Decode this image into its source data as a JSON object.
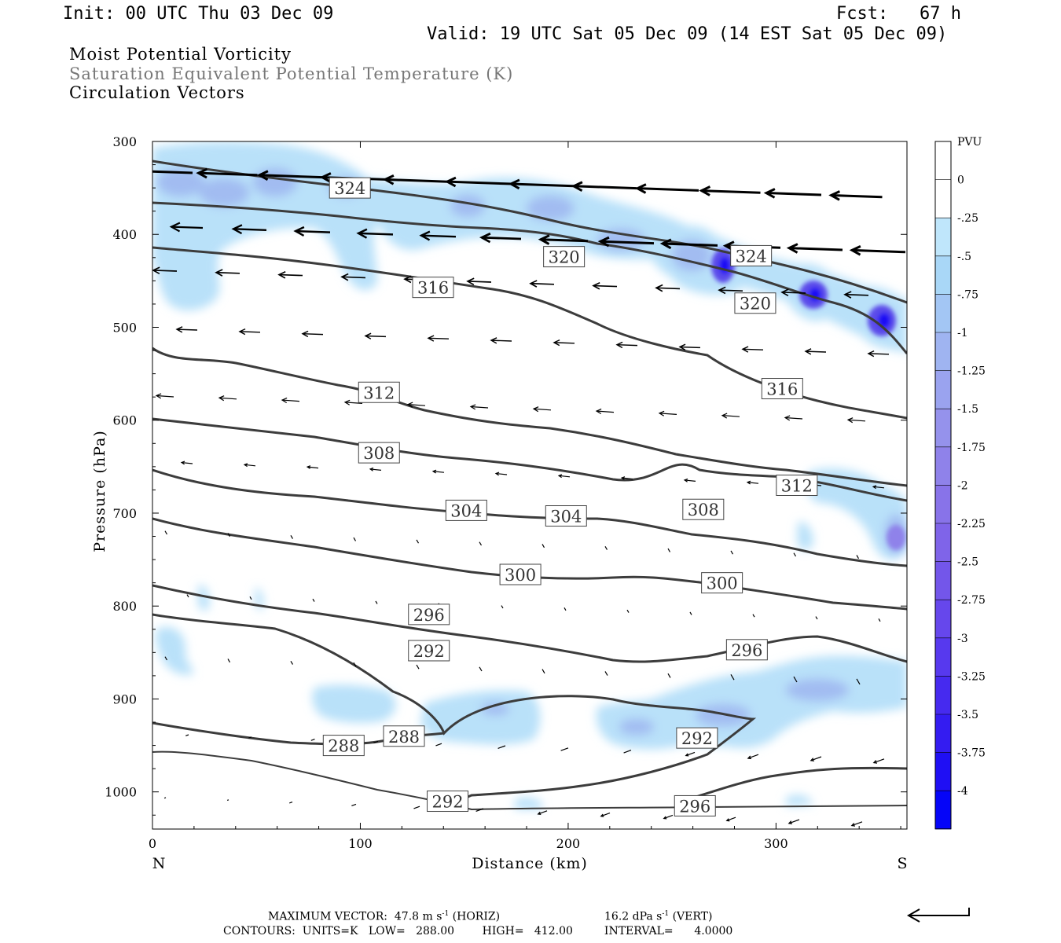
{
  "header": {
    "init": "Init: 00 UTC Thu 03 Dec 09",
    "fcst": "Fcst:   67 h",
    "valid": "Valid: 19 UTC Sat 05 Dec 09 (14 EST Sat 05 Dec 09)"
  },
  "fields": [
    {
      "label": "Moist Potential Vorticity",
      "color": "#000000"
    },
    {
      "label": "Saturation Equivalent Potential Temperature (K)",
      "color": "#777777"
    },
    {
      "label": "Circulation Vectors",
      "color": "#000000"
    }
  ],
  "footer": {
    "max_vector_prefix": "MAXIMUM VECTOR:  47.8 m s",
    "max_vector_horiz": "(HORIZ)",
    "max_vector_vert_prefix": "16.2 dPa s",
    "max_vector_vert": "(VERT)",
    "exp": "-1",
    "contours": "CONTOURS:  UNITS=K   LOW=   288.00        HIGH=   412.00         INTERVAL=      4.0000"
  },
  "chart_data": {
    "type": "cross-section",
    "xlabel": "Distance (km)",
    "ylabel": "Pressure (hPa)",
    "xlim": [
      0,
      363
    ],
    "ylim": [
      1040,
      300
    ],
    "x_ticks": [
      0,
      100,
      200,
      300
    ],
    "y_ticks": [
      300,
      400,
      500,
      600,
      700,
      800,
      900,
      1000
    ],
    "x_end_labels": {
      "left": "N",
      "right": "S"
    },
    "colorbar": {
      "title": "PVU",
      "levels": [
        "0",
        "-.25",
        "-.5",
        "-.75",
        "-1",
        "-1.25",
        "-1.5",
        "-1.75",
        "-2",
        "-2.25",
        "-2.5",
        "-2.75",
        "-3",
        "-3.25",
        "-3.5",
        "-3.75",
        "-4"
      ],
      "colors": [
        "#ffffff",
        "#ffffff",
        "#bfe6fb",
        "#a9d7f7",
        "#a3c6f4",
        "#9fb4f1",
        "#9aa3ef",
        "#9592ec",
        "#8f82ea",
        "#8873e9",
        "#7f64e9",
        "#7356ea",
        "#6647ec",
        "#5739ee",
        "#462aef",
        "#341cf1",
        "#1f0ff4",
        "#0505f8"
      ]
    },
    "contour_labels": [
      {
        "text": "324",
        "x": 95,
        "p": 350
      },
      {
        "text": "324",
        "x": 288,
        "p": 423
      },
      {
        "text": "320",
        "x": 198,
        "p": 424
      },
      {
        "text": "320",
        "x": 290,
        "p": 474
      },
      {
        "text": "316",
        "x": 135,
        "p": 457
      },
      {
        "text": "316",
        "x": 303,
        "p": 566
      },
      {
        "text": "312",
        "x": 109,
        "p": 570
      },
      {
        "text": "312",
        "x": 310,
        "p": 670
      },
      {
        "text": "308",
        "x": 109,
        "p": 635
      },
      {
        "text": "308",
        "x": 265,
        "p": 696
      },
      {
        "text": "304",
        "x": 151,
        "p": 697
      },
      {
        "text": "304",
        "x": 199,
        "p": 703
      },
      {
        "text": "300",
        "x": 177,
        "p": 766
      },
      {
        "text": "300",
        "x": 274,
        "p": 775
      },
      {
        "text": "296",
        "x": 133,
        "p": 809
      },
      {
        "text": "296",
        "x": 286,
        "p": 847
      },
      {
        "text": "292",
        "x": 133,
        "p": 848
      },
      {
        "text": "292",
        "x": 262,
        "p": 942
      },
      {
        "text": "292",
        "x": 142,
        "p": 1010
      },
      {
        "text": "296",
        "x": 261,
        "p": 1015
      },
      {
        "text": "288",
        "x": 92,
        "p": 950
      },
      {
        "text": "288",
        "x": 121,
        "p": 940
      }
    ]
  }
}
